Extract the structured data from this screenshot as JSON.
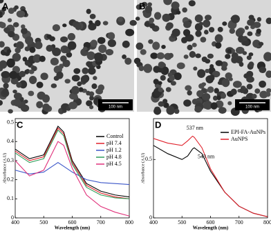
{
  "images": [
    {
      "label": "A",
      "scale_bar": "100 nm"
    },
    {
      "label": "B",
      "scale_bar": "100 nm"
    }
  ],
  "chart_data": [
    {
      "type": "line",
      "panel_label": "C",
      "x_label": "Wavelength (nm)",
      "y_label": "Absorbance (A.U)",
      "x": [
        400,
        450,
        500,
        530,
        550,
        570,
        600,
        650,
        700,
        750,
        800
      ],
      "series": [
        {
          "name": "Control",
          "color": "#000000",
          "values": [
            0.36,
            0.31,
            0.33,
            0.42,
            0.48,
            0.45,
            0.3,
            0.18,
            0.14,
            0.12,
            0.11
          ]
        },
        {
          "name": "pH 7.4",
          "color": "#e0202a",
          "values": [
            0.35,
            0.3,
            0.32,
            0.41,
            0.47,
            0.44,
            0.29,
            0.17,
            0.13,
            0.11,
            0.1
          ]
        },
        {
          "name": "pH 1.2",
          "color": "#3a55c8",
          "values": [
            0.25,
            0.23,
            0.24,
            0.27,
            0.29,
            0.27,
            0.24,
            0.2,
            0.185,
            0.18,
            0.175
          ]
        },
        {
          "name": "pH 4.8",
          "color": "#2e9e5a",
          "values": [
            0.34,
            0.29,
            0.31,
            0.4,
            0.46,
            0.43,
            0.28,
            0.16,
            0.12,
            0.105,
            0.1
          ]
        },
        {
          "name": "pH 4.5",
          "color": "#e0307a",
          "values": [
            0.3,
            0.22,
            0.25,
            0.34,
            0.4,
            0.38,
            0.26,
            0.12,
            0.06,
            0.03,
            0.01
          ]
        }
      ],
      "xlim": [
        400,
        800
      ],
      "xticks": [
        400,
        500,
        600,
        700,
        800
      ],
      "ylim": [
        0,
        0.52
      ],
      "yticks": [
        0,
        0.1,
        0.2,
        0.3,
        0.4,
        0.5
      ],
      "legend": "upper right"
    },
    {
      "type": "line",
      "panel_label": "D",
      "x_label": "Wavelength (nm)",
      "y_label": "Absorbance (A.U)",
      "x": [
        400,
        450,
        500,
        520,
        537,
        543,
        570,
        600,
        650,
        700,
        750,
        800
      ],
      "series": [
        {
          "name": "EPI-FA-AuNPs",
          "color": "#000000",
          "values": [
            0.62,
            0.55,
            0.5,
            0.53,
            0.59,
            0.6,
            0.55,
            0.4,
            0.22,
            0.1,
            0.04,
            0.01
          ]
        },
        {
          "name": "AuNPS",
          "color": "#e0202a",
          "values": [
            0.68,
            0.64,
            0.62,
            0.66,
            0.7,
            0.69,
            0.6,
            0.42,
            0.22,
            0.1,
            0.04,
            0.01
          ]
        }
      ],
      "annotations": [
        "537 nm",
        "543 nm"
      ],
      "xlim": [
        400,
        800
      ],
      "xticks": [
        400,
        500,
        600,
        700,
        800
      ],
      "ylim": [
        0,
        0.85
      ],
      "yticks": [
        0,
        0.5
      ],
      "legend": "upper right"
    }
  ]
}
